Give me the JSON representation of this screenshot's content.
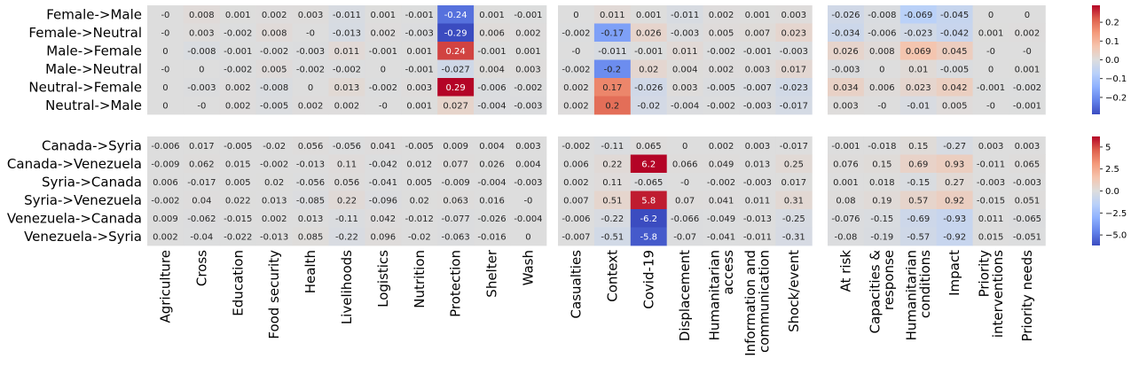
{
  "chart_data": {
    "type": "heatmap",
    "colormap": "coolwarm",
    "nan_color": "#dddddd",
    "column_groups": [
      [
        "Agriculture",
        "Cross",
        "Education",
        "Food security",
        "Health",
        "Livelihoods",
        "Logistics",
        "Nutrition",
        "Protection",
        "Shelter",
        "Wash"
      ],
      [
        "Casualties",
        "Context",
        "Covid-19",
        "Displacement",
        "Humanitarian access",
        "Information and communication",
        "Shock/event"
      ],
      [
        "At risk",
        "Capacities & response",
        "Humanitarian conditions",
        "Impact",
        "Priority interventions",
        "Priority needs"
      ]
    ],
    "column_label_lines": [
      [
        [
          "Agriculture"
        ],
        [
          "Cross"
        ],
        [
          "Education"
        ],
        [
          "Food security"
        ],
        [
          "Health"
        ],
        [
          "Livelihoods"
        ],
        [
          "Logistics"
        ],
        [
          "Nutrition"
        ],
        [
          "Protection"
        ],
        [
          "Shelter"
        ],
        [
          "Wash"
        ]
      ],
      [
        [
          "Casualties"
        ],
        [
          "Context"
        ],
        [
          "Covid-19"
        ],
        [
          "Displacement"
        ],
        [
          "Humanitarian",
          "access"
        ],
        [
          "Information and",
          "communication"
        ],
        [
          "Shock/event"
        ]
      ],
      [
        [
          "At risk"
        ],
        [
          "Capacities &",
          "response"
        ],
        [
          "Humanitarian",
          "conditions"
        ],
        [
          "Impact"
        ],
        [
          "Priority",
          "interventions"
        ],
        [
          "Priority needs"
        ]
      ]
    ],
    "panels": [
      {
        "rows": [
          "Female->Male",
          "Female->Neutral",
          "Male->Female",
          "Male->Neutral",
          "Neutral->Female",
          "Neutral->Male"
        ],
        "vrange": [
          -0.29,
          0.29
        ],
        "colorbar_ticks": [
          0.2,
          0.1,
          0.0,
          -0.1,
          -0.2
        ],
        "colorbar_tick_labels": [
          "0.2",
          "0.1",
          "0.0",
          "−0.1",
          "−0.2"
        ],
        "values": [
          [
            [
              0,
              0.008,
              0.001,
              0.002,
              0.003,
              -0.011,
              0.001,
              -0.001,
              -0.24,
              0.001,
              -0.001
            ],
            [
              0,
              0.011,
              0.001,
              -0.011,
              0.002,
              0.001,
              0.003
            ],
            [
              -0.026,
              -0.008,
              -0.069,
              -0.045,
              0,
              0
            ]
          ],
          [
            [
              0,
              0.003,
              -0.002,
              0.008,
              0,
              -0.013,
              0.002,
              -0.003,
              -0.29,
              0.006,
              0.002
            ],
            [
              -0.002,
              -0.17,
              0.026,
              -0.003,
              0.005,
              0.007,
              0.023
            ],
            [
              -0.034,
              -0.006,
              -0.023,
              -0.042,
              0.001,
              0.002
            ]
          ],
          [
            [
              0,
              -0.008,
              -0.001,
              -0.002,
              -0.003,
              0.011,
              -0.001,
              0.001,
              0.24,
              -0.001,
              0.001
            ],
            [
              0,
              -0.011,
              -0.001,
              0.011,
              -0.002,
              -0.001,
              -0.003
            ],
            [
              0.026,
              0.008,
              0.069,
              0.045,
              0,
              0
            ]
          ],
          [
            [
              0,
              0,
              -0.002,
              0.005,
              -0.002,
              -0.002,
              0,
              -0.001,
              -0.027,
              0.004,
              0.003
            ],
            [
              -0.002,
              -0.2,
              0.02,
              0.004,
              0.002,
              0.003,
              0.017
            ],
            [
              -0.003,
              0,
              0.01,
              -0.005,
              0,
              0.001
            ]
          ],
          [
            [
              0,
              -0.003,
              0.002,
              -0.008,
              0,
              0.013,
              -0.002,
              0.003,
              0.29,
              -0.006,
              -0.002
            ],
            [
              0.002,
              0.17,
              -0.026,
              0.003,
              -0.005,
              -0.007,
              -0.023
            ],
            [
              0.034,
              0.006,
              0.023,
              0.042,
              -0.001,
              -0.002
            ]
          ],
          [
            [
              0,
              0,
              0.002,
              -0.005,
              0.002,
              0.002,
              0,
              0.001,
              0.027,
              -0.004,
              -0.003
            ],
            [
              0.002,
              0.2,
              -0.02,
              -0.004,
              -0.002,
              -0.003,
              -0.017
            ],
            [
              0.003,
              0,
              -0.01,
              0.005,
              0,
              -0.001
            ]
          ]
        ],
        "labels": [
          [
            [
              "-0",
              "0.008",
              "0.001",
              "0.002",
              "0.003",
              "-0.011",
              "0.001",
              "-0.001",
              "-0.24",
              "0.001",
              "-0.001"
            ],
            [
              "0",
              "0.011",
              "0.001",
              "-0.011",
              "0.002",
              "0.001",
              "0.003"
            ],
            [
              "-0.026",
              "-0.008",
              "-0.069",
              "-0.045",
              "0",
              "0"
            ]
          ],
          [
            [
              "-0",
              "0.003",
              "-0.002",
              "0.008",
              "-0",
              "-0.013",
              "0.002",
              "-0.003",
              "-0.29",
              "0.006",
              "0.002"
            ],
            [
              "-0.002",
              "-0.17",
              "0.026",
              "-0.003",
              "0.005",
              "0.007",
              "0.023"
            ],
            [
              "-0.034",
              "-0.006",
              "-0.023",
              "-0.042",
              "0.001",
              "0.002"
            ]
          ],
          [
            [
              "0",
              "-0.008",
              "-0.001",
              "-0.002",
              "-0.003",
              "0.011",
              "-0.001",
              "0.001",
              "0.24",
              "-0.001",
              "0.001"
            ],
            [
              "-0",
              "-0.011",
              "-0.001",
              "0.011",
              "-0.002",
              "-0.001",
              "-0.003"
            ],
            [
              "0.026",
              "0.008",
              "0.069",
              "0.045",
              "-0",
              "-0"
            ]
          ],
          [
            [
              "-0",
              "0",
              "-0.002",
              "0.005",
              "-0.002",
              "-0.002",
              "0",
              "-0.001",
              "-0.027",
              "0.004",
              "0.003"
            ],
            [
              "-0.002",
              "-0.2",
              "0.02",
              "0.004",
              "0.002",
              "0.003",
              "0.017"
            ],
            [
              "-0.003",
              "0",
              "0.01",
              "-0.005",
              "0",
              "0.001"
            ]
          ],
          [
            [
              "0",
              "-0.003",
              "0.002",
              "-0.008",
              "0",
              "0.013",
              "-0.002",
              "0.003",
              "0.29",
              "-0.006",
              "-0.002"
            ],
            [
              "0.002",
              "0.17",
              "-0.026",
              "0.003",
              "-0.005",
              "-0.007",
              "-0.023"
            ],
            [
              "0.034",
              "0.006",
              "0.023",
              "0.042",
              "-0.001",
              "-0.002"
            ]
          ],
          [
            [
              "0",
              "-0",
              "0.002",
              "-0.005",
              "0.002",
              "0.002",
              "-0",
              "0.001",
              "0.027",
              "-0.004",
              "-0.003"
            ],
            [
              "0.002",
              "0.2",
              "-0.02",
              "-0.004",
              "-0.002",
              "-0.003",
              "-0.017"
            ],
            [
              "0.003",
              "-0",
              "-0.01",
              "0.005",
              "-0",
              "-0.001"
            ]
          ]
        ]
      },
      {
        "rows": [
          "Canada->Syria",
          "Canada->Venezuela",
          "Syria->Canada",
          "Syria->Venezuela",
          "Venezuela->Canada",
          "Venezuela->Syria"
        ],
        "vrange": [
          -6.2,
          6.2
        ],
        "colorbar_ticks": [
          5.0,
          2.5,
          0.0,
          -2.5,
          -5.0
        ],
        "colorbar_tick_labels": [
          "5",
          "2.5",
          "0.0",
          "−2.5",
          "−5.0"
        ],
        "values": [
          [
            [
              -0.006,
              0.017,
              -0.005,
              -0.02,
              0.056,
              -0.056,
              0.041,
              -0.005,
              0.009,
              0.004,
              0.003
            ],
            [
              -0.002,
              -0.11,
              0.065,
              0,
              0.002,
              0.003,
              -0.017
            ],
            [
              -0.001,
              -0.018,
              0.15,
              -0.27,
              0.003,
              0.003
            ]
          ],
          [
            [
              -0.009,
              0.062,
              0.015,
              -0.002,
              -0.013,
              0.11,
              -0.042,
              0.012,
              0.077,
              0.026,
              0.004
            ],
            [
              0.006,
              0.22,
              6.2,
              0.066,
              0.049,
              0.013,
              0.25
            ],
            [
              0.076,
              0.15,
              0.69,
              0.93,
              -0.011,
              0.065
            ]
          ],
          [
            [
              0.006,
              -0.017,
              0.005,
              0.02,
              -0.056,
              0.056,
              -0.041,
              0.005,
              -0.009,
              -0.004,
              -0.003
            ],
            [
              0.002,
              0.11,
              -0.065,
              0,
              -0.002,
              -0.003,
              0.017
            ],
            [
              0.001,
              0.018,
              -0.15,
              0.27,
              -0.003,
              -0.003
            ]
          ],
          [
            [
              -0.002,
              0.04,
              0.022,
              0.013,
              -0.085,
              0.22,
              -0.096,
              0.02,
              0.063,
              0.016,
              0
            ],
            [
              0.007,
              0.51,
              5.8,
              0.07,
              0.041,
              0.011,
              0.31
            ],
            [
              0.08,
              0.19,
              0.57,
              0.92,
              -0.015,
              0.051
            ]
          ],
          [
            [
              0.009,
              -0.062,
              -0.015,
              0.002,
              0.013,
              -0.11,
              0.042,
              -0.012,
              -0.077,
              -0.026,
              -0.004
            ],
            [
              -0.006,
              -0.22,
              -6.2,
              -0.066,
              -0.049,
              -0.013,
              -0.25
            ],
            [
              -0.076,
              -0.15,
              -0.69,
              -0.93,
              0.011,
              -0.065
            ]
          ],
          [
            [
              0.002,
              -0.04,
              -0.022,
              -0.013,
              0.085,
              -0.22,
              0.096,
              -0.02,
              -0.063,
              -0.016,
              0
            ],
            [
              -0.007,
              -0.51,
              -5.8,
              -0.07,
              -0.041,
              -0.011,
              -0.31
            ],
            [
              -0.08,
              -0.19,
              -0.57,
              -0.92,
              0.015,
              -0.051
            ]
          ]
        ],
        "labels": [
          [
            [
              "-0.006",
              "0.017",
              "-0.005",
              "-0.02",
              "0.056",
              "-0.056",
              "0.041",
              "-0.005",
              "0.009",
              "0.004",
              "0.003"
            ],
            [
              "-0.002",
              "-0.11",
              "0.065",
              "0",
              "0.002",
              "0.003",
              "-0.017"
            ],
            [
              "-0.001",
              "-0.018",
              "0.15",
              "-0.27",
              "0.003",
              "0.003"
            ]
          ],
          [
            [
              "-0.009",
              "0.062",
              "0.015",
              "-0.002",
              "-0.013",
              "0.11",
              "-0.042",
              "0.012",
              "0.077",
              "0.026",
              "0.004"
            ],
            [
              "0.006",
              "0.22",
              "6.2",
              "0.066",
              "0.049",
              "0.013",
              "0.25"
            ],
            [
              "0.076",
              "0.15",
              "0.69",
              "0.93",
              "-0.011",
              "0.065"
            ]
          ],
          [
            [
              "0.006",
              "-0.017",
              "0.005",
              "0.02",
              "-0.056",
              "0.056",
              "-0.041",
              "0.005",
              "-0.009",
              "-0.004",
              "-0.003"
            ],
            [
              "0.002",
              "0.11",
              "-0.065",
              "-0",
              "-0.002",
              "-0.003",
              "0.017"
            ],
            [
              "0.001",
              "0.018",
              "-0.15",
              "0.27",
              "-0.003",
              "-0.003"
            ]
          ],
          [
            [
              "-0.002",
              "0.04",
              "0.022",
              "0.013",
              "-0.085",
              "0.22",
              "-0.096",
              "0.02",
              "0.063",
              "0.016",
              "-0"
            ],
            [
              "0.007",
              "0.51",
              "5.8",
              "0.07",
              "0.041",
              "0.011",
              "0.31"
            ],
            [
              "0.08",
              "0.19",
              "0.57",
              "0.92",
              "-0.015",
              "0.051"
            ]
          ],
          [
            [
              "0.009",
              "-0.062",
              "-0.015",
              "0.002",
              "0.013",
              "-0.11",
              "0.042",
              "-0.012",
              "-0.077",
              "-0.026",
              "-0.004"
            ],
            [
              "-0.006",
              "-0.22",
              "-6.2",
              "-0.066",
              "-0.049",
              "-0.013",
              "-0.25"
            ],
            [
              "-0.076",
              "-0.15",
              "-0.69",
              "-0.93",
              "0.011",
              "-0.065"
            ]
          ],
          [
            [
              "0.002",
              "-0.04",
              "-0.022",
              "-0.013",
              "0.085",
              "-0.22",
              "0.096",
              "-0.02",
              "-0.063",
              "-0.016",
              "0"
            ],
            [
              "-0.007",
              "-0.51",
              "-5.8",
              "-0.07",
              "-0.041",
              "-0.011",
              "-0.31"
            ],
            [
              "-0.08",
              "-0.19",
              "-0.57",
              "-0.92",
              "0.015",
              "-0.051"
            ]
          ]
        ]
      }
    ]
  }
}
